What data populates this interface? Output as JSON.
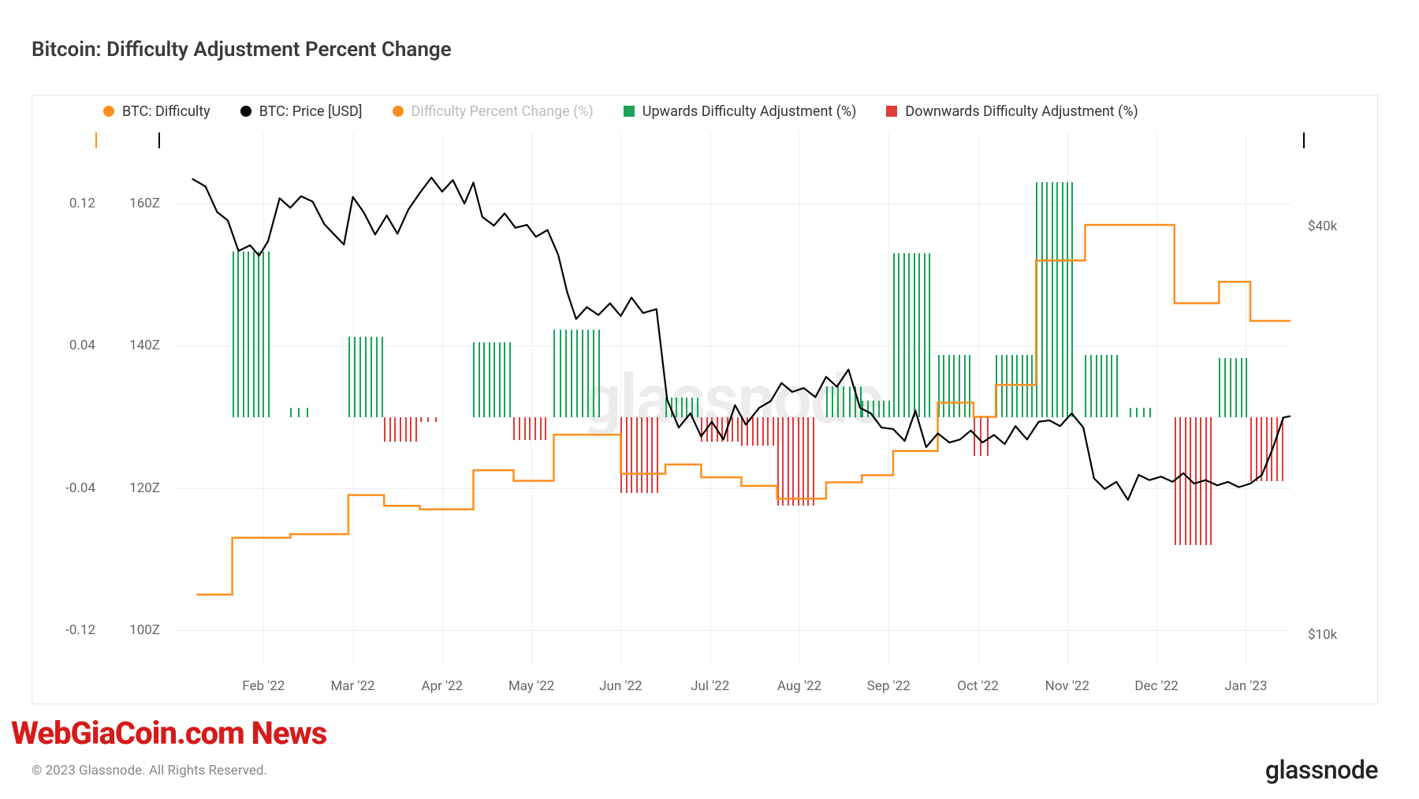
{
  "title": "Bitcoin: Difficulty Adjustment Percent Change",
  "legend": [
    {
      "label": "BTC: Difficulty",
      "type": "dot",
      "color": "#ff8f1f"
    },
    {
      "label": "BTC: Price [USD]",
      "type": "dot",
      "color": "#000000"
    },
    {
      "label": "Difficulty Percent Change (%)",
      "type": "dot",
      "color": "#ff8f1f",
      "muted": true
    },
    {
      "label": "Upwards Difficulty Adjustment (%)",
      "type": "square",
      "color": "#1aa35a"
    },
    {
      "label": "Downwards Difficulty Adjustment (%)",
      "type": "square",
      "color": "#e23b3b"
    }
  ],
  "colors": {
    "difficulty": "#ff8f1f",
    "price": "#000000",
    "up": "#1aa35a",
    "down": "#e23b3b",
    "grid": "#eeeeee",
    "axis_stub_left": "#ff8f1f",
    "axis_stub_left2": "#000000",
    "axis_stub_right": "#000000",
    "watermark": "#ececec",
    "background": "#ffffff"
  },
  "axis": {
    "x": {
      "min": 0,
      "max": 12.5,
      "ticks": [
        {
          "v": 1,
          "label": "Feb '22"
        },
        {
          "v": 2,
          "label": "Mar '22"
        },
        {
          "v": 3,
          "label": "Apr '22"
        },
        {
          "v": 4,
          "label": "May '22"
        },
        {
          "v": 5,
          "label": "Jun '22"
        },
        {
          "v": 6,
          "label": "Jul '22"
        },
        {
          "v": 7,
          "label": "Aug '22"
        },
        {
          "v": 8,
          "label": "Sep '22"
        },
        {
          "v": 9,
          "label": "Oct '22"
        },
        {
          "v": 10,
          "label": "Nov '22"
        },
        {
          "v": 11,
          "label": "Dec '22"
        },
        {
          "v": 12,
          "label": "Jan '23"
        }
      ]
    },
    "y1": {
      "name": "pct",
      "min": -0.14,
      "max": 0.16,
      "ticks": [
        {
          "v": -0.12,
          "label": "-0.12"
        },
        {
          "v": -0.04,
          "label": "-0.04"
        },
        {
          "v": 0.04,
          "label": "0.04"
        },
        {
          "v": 0.12,
          "label": "0.12"
        }
      ]
    },
    "y2": {
      "name": "difficulty_Z",
      "min": 95,
      "max": 170,
      "ticks": [
        {
          "v": 100,
          "label": "100Z"
        },
        {
          "v": 120,
          "label": "120Z"
        },
        {
          "v": 140,
          "label": "140Z"
        },
        {
          "v": 160,
          "label": "160Z"
        }
      ]
    },
    "y3": {
      "name": "price_usd",
      "scale": "log",
      "min": 9000,
      "max": 55000,
      "ticks": [
        {
          "v": 10000,
          "label": "$10k"
        },
        {
          "v": 40000,
          "label": "$40k"
        }
      ]
    }
  },
  "bars": [
    {
      "start": 0.65,
      "end": 1.05,
      "value": 0.093,
      "dir": "up"
    },
    {
      "start": 1.3,
      "end": 1.48,
      "value": 0.005,
      "dir": "up"
    },
    {
      "start": 1.95,
      "end": 2.32,
      "value": 0.045,
      "dir": "up"
    },
    {
      "start": 2.35,
      "end": 2.7,
      "value": -0.014,
      "dir": "down"
    },
    {
      "start": 2.75,
      "end": 2.92,
      "value": -0.003,
      "dir": "down"
    },
    {
      "start": 3.35,
      "end": 3.75,
      "value": 0.042,
      "dir": "up"
    },
    {
      "start": 3.8,
      "end": 4.15,
      "value": -0.013,
      "dir": "down"
    },
    {
      "start": 4.25,
      "end": 4.75,
      "value": 0.049,
      "dir": "up"
    },
    {
      "start": 5.0,
      "end": 5.4,
      "value": -0.043,
      "dir": "down"
    },
    {
      "start": 5.5,
      "end": 5.85,
      "value": 0.011,
      "dir": "up"
    },
    {
      "start": 5.9,
      "end": 6.3,
      "value": -0.014,
      "dir": "down"
    },
    {
      "start": 6.35,
      "end": 6.7,
      "value": -0.016,
      "dir": "down"
    },
    {
      "start": 6.75,
      "end": 7.15,
      "value": -0.05,
      "dir": "down"
    },
    {
      "start": 7.3,
      "end": 7.68,
      "value": 0.017,
      "dir": "up"
    },
    {
      "start": 7.7,
      "end": 8.0,
      "value": 0.009,
      "dir": "up"
    },
    {
      "start": 8.05,
      "end": 8.45,
      "value": 0.092,
      "dir": "up"
    },
    {
      "start": 8.55,
      "end": 8.9,
      "value": 0.035,
      "dir": "up"
    },
    {
      "start": 8.95,
      "end": 9.1,
      "value": -0.022,
      "dir": "down"
    },
    {
      "start": 9.2,
      "end": 9.6,
      "value": 0.035,
      "dir": "up"
    },
    {
      "start": 9.65,
      "end": 10.05,
      "value": 0.132,
      "dir": "up"
    },
    {
      "start": 10.2,
      "end": 10.55,
      "value": 0.035,
      "dir": "up"
    },
    {
      "start": 10.7,
      "end": 10.92,
      "value": 0.005,
      "dir": "up"
    },
    {
      "start": 11.2,
      "end": 11.6,
      "value": -0.072,
      "dir": "down"
    },
    {
      "start": 11.7,
      "end": 12.0,
      "value": 0.033,
      "dir": "up"
    },
    {
      "start": 12.05,
      "end": 12.4,
      "value": -0.036,
      "dir": "down"
    }
  ],
  "difficulty_line": [
    {
      "x": 0.25,
      "z": 105
    },
    {
      "x": 0.65,
      "z": 105
    },
    {
      "x": 0.65,
      "z": 113
    },
    {
      "x": 1.3,
      "z": 113
    },
    {
      "x": 1.3,
      "z": 113.5
    },
    {
      "x": 1.95,
      "z": 113.5
    },
    {
      "x": 1.95,
      "z": 119
    },
    {
      "x": 2.35,
      "z": 119
    },
    {
      "x": 2.35,
      "z": 117.5
    },
    {
      "x": 2.75,
      "z": 117.5
    },
    {
      "x": 2.75,
      "z": 117
    },
    {
      "x": 3.35,
      "z": 117
    },
    {
      "x": 3.35,
      "z": 122.5
    },
    {
      "x": 3.8,
      "z": 122.5
    },
    {
      "x": 3.8,
      "z": 121
    },
    {
      "x": 4.25,
      "z": 121
    },
    {
      "x": 4.25,
      "z": 127.5
    },
    {
      "x": 5.0,
      "z": 127.5
    },
    {
      "x": 5.0,
      "z": 122
    },
    {
      "x": 5.5,
      "z": 122
    },
    {
      "x": 5.5,
      "z": 123.3
    },
    {
      "x": 5.9,
      "z": 123.3
    },
    {
      "x": 5.9,
      "z": 121.5
    },
    {
      "x": 6.35,
      "z": 121.5
    },
    {
      "x": 6.35,
      "z": 120.3
    },
    {
      "x": 6.75,
      "z": 120.3
    },
    {
      "x": 6.75,
      "z": 118.5
    },
    {
      "x": 7.3,
      "z": 118.5
    },
    {
      "x": 7.3,
      "z": 120.8
    },
    {
      "x": 7.7,
      "z": 120.8
    },
    {
      "x": 7.7,
      "z": 121.8
    },
    {
      "x": 8.05,
      "z": 121.8
    },
    {
      "x": 8.05,
      "z": 125.2
    },
    {
      "x": 8.55,
      "z": 125.2
    },
    {
      "x": 8.55,
      "z": 132
    },
    {
      "x": 8.95,
      "z": 132
    },
    {
      "x": 8.95,
      "z": 130
    },
    {
      "x": 9.2,
      "z": 130
    },
    {
      "x": 9.2,
      "z": 134.5
    },
    {
      "x": 9.65,
      "z": 134.5
    },
    {
      "x": 9.65,
      "z": 152
    },
    {
      "x": 10.2,
      "z": 152
    },
    {
      "x": 10.2,
      "z": 157
    },
    {
      "x": 11.2,
      "z": 157
    },
    {
      "x": 11.2,
      "z": 146
    },
    {
      "x": 11.7,
      "z": 146
    },
    {
      "x": 11.7,
      "z": 149
    },
    {
      "x": 12.05,
      "z": 149
    },
    {
      "x": 12.05,
      "z": 143.5
    },
    {
      "x": 12.5,
      "z": 143.5
    }
  ],
  "price_line": [
    {
      "x": 0.2,
      "p": 47000
    },
    {
      "x": 0.35,
      "p": 45800
    },
    {
      "x": 0.48,
      "p": 42000
    },
    {
      "x": 0.6,
      "p": 40800
    },
    {
      "x": 0.72,
      "p": 36800
    },
    {
      "x": 0.85,
      "p": 37500
    },
    {
      "x": 0.95,
      "p": 36200
    },
    {
      "x": 1.05,
      "p": 38000
    },
    {
      "x": 1.18,
      "p": 44000
    },
    {
      "x": 1.3,
      "p": 42600
    },
    {
      "x": 1.42,
      "p": 44300
    },
    {
      "x": 1.55,
      "p": 43500
    },
    {
      "x": 1.68,
      "p": 40300
    },
    {
      "x": 1.8,
      "p": 38800
    },
    {
      "x": 1.9,
      "p": 37600
    },
    {
      "x": 2.0,
      "p": 44200
    },
    {
      "x": 2.12,
      "p": 42000
    },
    {
      "x": 2.25,
      "p": 38900
    },
    {
      "x": 2.38,
      "p": 41500
    },
    {
      "x": 2.5,
      "p": 39000
    },
    {
      "x": 2.62,
      "p": 42300
    },
    {
      "x": 2.75,
      "p": 44800
    },
    {
      "x": 2.88,
      "p": 47200
    },
    {
      "x": 3.0,
      "p": 45000
    },
    {
      "x": 3.12,
      "p": 46800
    },
    {
      "x": 3.25,
      "p": 43200
    },
    {
      "x": 3.35,
      "p": 46400
    },
    {
      "x": 3.45,
      "p": 41300
    },
    {
      "x": 3.58,
      "p": 40100
    },
    {
      "x": 3.7,
      "p": 41800
    },
    {
      "x": 3.82,
      "p": 39800
    },
    {
      "x": 3.95,
      "p": 40200
    },
    {
      "x": 4.05,
      "p": 38600
    },
    {
      "x": 4.18,
      "p": 39500
    },
    {
      "x": 4.3,
      "p": 36300
    },
    {
      "x": 4.4,
      "p": 32000
    },
    {
      "x": 4.5,
      "p": 29200
    },
    {
      "x": 4.62,
      "p": 30400
    },
    {
      "x": 4.75,
      "p": 29600
    },
    {
      "x": 4.88,
      "p": 30800
    },
    {
      "x": 5.0,
      "p": 29500
    },
    {
      "x": 5.12,
      "p": 31400
    },
    {
      "x": 5.25,
      "p": 29800
    },
    {
      "x": 5.4,
      "p": 30200
    },
    {
      "x": 5.52,
      "p": 22200
    },
    {
      "x": 5.65,
      "p": 20200
    },
    {
      "x": 5.78,
      "p": 21200
    },
    {
      "x": 5.9,
      "p": 19600
    },
    {
      "x": 6.02,
      "p": 20600
    },
    {
      "x": 6.15,
      "p": 19400
    },
    {
      "x": 6.28,
      "p": 21800
    },
    {
      "x": 6.4,
      "p": 20400
    },
    {
      "x": 6.55,
      "p": 21600
    },
    {
      "x": 6.68,
      "p": 22100
    },
    {
      "x": 6.8,
      "p": 23500
    },
    {
      "x": 6.92,
      "p": 22800
    },
    {
      "x": 7.05,
      "p": 23100
    },
    {
      "x": 7.18,
      "p": 22400
    },
    {
      "x": 7.3,
      "p": 24000
    },
    {
      "x": 7.42,
      "p": 23200
    },
    {
      "x": 7.55,
      "p": 24600
    },
    {
      "x": 7.68,
      "p": 21600
    },
    {
      "x": 7.8,
      "p": 21200
    },
    {
      "x": 7.92,
      "p": 20200
    },
    {
      "x": 8.05,
      "p": 20100
    },
    {
      "x": 8.18,
      "p": 19300
    },
    {
      "x": 8.3,
      "p": 21400
    },
    {
      "x": 8.42,
      "p": 18900
    },
    {
      "x": 8.55,
      "p": 19800
    },
    {
      "x": 8.68,
      "p": 19200
    },
    {
      "x": 8.8,
      "p": 19400
    },
    {
      "x": 8.92,
      "p": 20000
    },
    {
      "x": 9.05,
      "p": 19200
    },
    {
      "x": 9.18,
      "p": 19700
    },
    {
      "x": 9.3,
      "p": 19100
    },
    {
      "x": 9.42,
      "p": 20300
    },
    {
      "x": 9.55,
      "p": 19400
    },
    {
      "x": 9.68,
      "p": 20600
    },
    {
      "x": 9.8,
      "p": 20700
    },
    {
      "x": 9.92,
      "p": 20300
    },
    {
      "x": 10.05,
      "p": 21200
    },
    {
      "x": 10.18,
      "p": 20200
    },
    {
      "x": 10.3,
      "p": 17000
    },
    {
      "x": 10.42,
      "p": 16400
    },
    {
      "x": 10.55,
      "p": 16800
    },
    {
      "x": 10.68,
      "p": 15800
    },
    {
      "x": 10.8,
      "p": 17200
    },
    {
      "x": 10.92,
      "p": 16900
    },
    {
      "x": 11.05,
      "p": 17100
    },
    {
      "x": 11.18,
      "p": 16800
    },
    {
      "x": 11.3,
      "p": 17300
    },
    {
      "x": 11.42,
      "p": 16700
    },
    {
      "x": 11.55,
      "p": 16900
    },
    {
      "x": 11.68,
      "p": 16600
    },
    {
      "x": 11.8,
      "p": 16800
    },
    {
      "x": 11.92,
      "p": 16500
    },
    {
      "x": 12.05,
      "p": 16700
    },
    {
      "x": 12.18,
      "p": 17200
    },
    {
      "x": 12.3,
      "p": 18800
    },
    {
      "x": 12.42,
      "p": 20900
    },
    {
      "x": 12.5,
      "p": 21000
    }
  ],
  "watermark": "glassnode",
  "overlay": "WebGiaCoin.com News",
  "copyright": "© 2023 Glassnode. All Rights Reserved.",
  "brand": "glassnode",
  "style": {
    "line_width_difficulty": 2.5,
    "line_width_price": 2.2,
    "bar_stripe_width": 2,
    "title_fontsize": 26,
    "legend_fontsize": 18,
    "tick_fontsize": 17
  }
}
